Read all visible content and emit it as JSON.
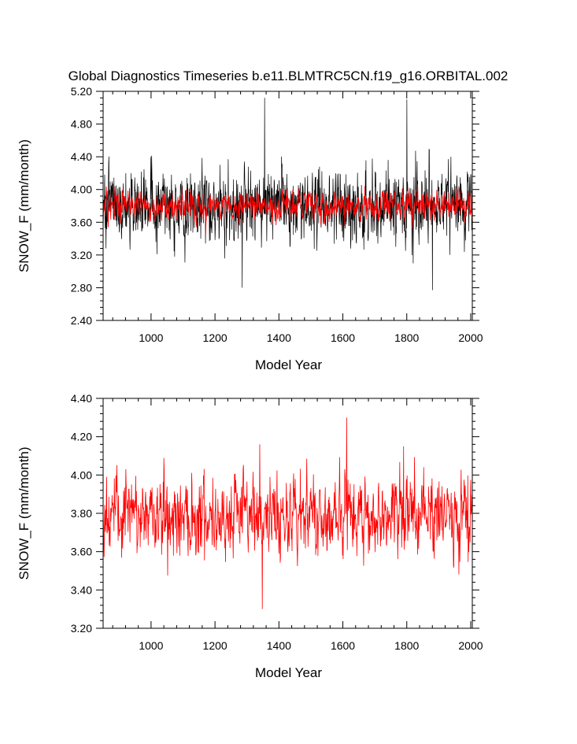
{
  "title": "Global Diagnostics Timeseries b.e11.BLMTRC5CN.f19_g16.ORBITAL.002",
  "colors": {
    "monthly": "#000000",
    "annual": "#ff0000",
    "axis": "#000000"
  },
  "chart_data": [
    {
      "type": "line",
      "name": "top-panel",
      "xlabel": "Model Year",
      "ylabel": "SNOW_F (mm/month)",
      "xlim": [
        850,
        2005
      ],
      "ylim": [
        2.4,
        5.2
      ],
      "xticks": [
        1000,
        1200,
        1400,
        1600,
        1800,
        2000
      ],
      "xtick_labels": [
        "1000",
        "1200",
        "1400",
        "1600",
        "1800",
        "2000"
      ],
      "yticks": [
        2.4,
        2.8,
        3.2,
        3.6,
        4.0,
        4.4,
        4.8,
        5.2
      ],
      "ytick_labels": [
        "2.40",
        "2.80",
        "3.20",
        "3.60",
        "4.00",
        "4.40",
        "4.80",
        "5.20"
      ],
      "series": [
        {
          "name": "monthly",
          "color": "#000000",
          "x_start": 850,
          "x_end": 2005,
          "mean": 3.8,
          "approx_min": 2.78,
          "approx_max": 5.12,
          "note_peaks": [
            [
              1355,
              5.12
            ],
            [
              1800,
              5.1
            ],
            [
              1285,
              2.8
            ],
            [
              1880,
              2.77
            ]
          ]
        },
        {
          "name": "annual",
          "color": "#ff0000",
          "x_start": 850,
          "x_end": 2005,
          "mean": 3.8,
          "approx_min": 3.3,
          "approx_max": 4.3
        }
      ]
    },
    {
      "type": "line",
      "name": "bottom-panel",
      "xlabel": "Model Year",
      "ylabel": "SNOW_F (mm/month)",
      "xlim": [
        850,
        2005
      ],
      "ylim": [
        3.2,
        4.4
      ],
      "xticks": [
        1000,
        1200,
        1400,
        1600,
        1800,
        2000
      ],
      "xtick_labels": [
        "1000",
        "1200",
        "1400",
        "1600",
        "1800",
        "2000"
      ],
      "yticks": [
        3.2,
        3.4,
        3.6,
        3.8,
        4.0,
        4.2,
        4.4
      ],
      "ytick_labels": [
        "3.20",
        "3.40",
        "3.60",
        "3.80",
        "4.00",
        "4.20",
        "4.40"
      ],
      "series": [
        {
          "name": "annual",
          "color": "#ff0000",
          "x_start": 850,
          "x_end": 2005,
          "mean": 3.79,
          "approx_min": 3.3,
          "approx_max": 4.3,
          "note_peaks": [
            [
              1612,
              4.3
            ],
            [
              1348,
              3.3
            ],
            [
              1790,
              4.15
            ],
            [
              1340,
              4.16
            ]
          ]
        }
      ]
    }
  ]
}
